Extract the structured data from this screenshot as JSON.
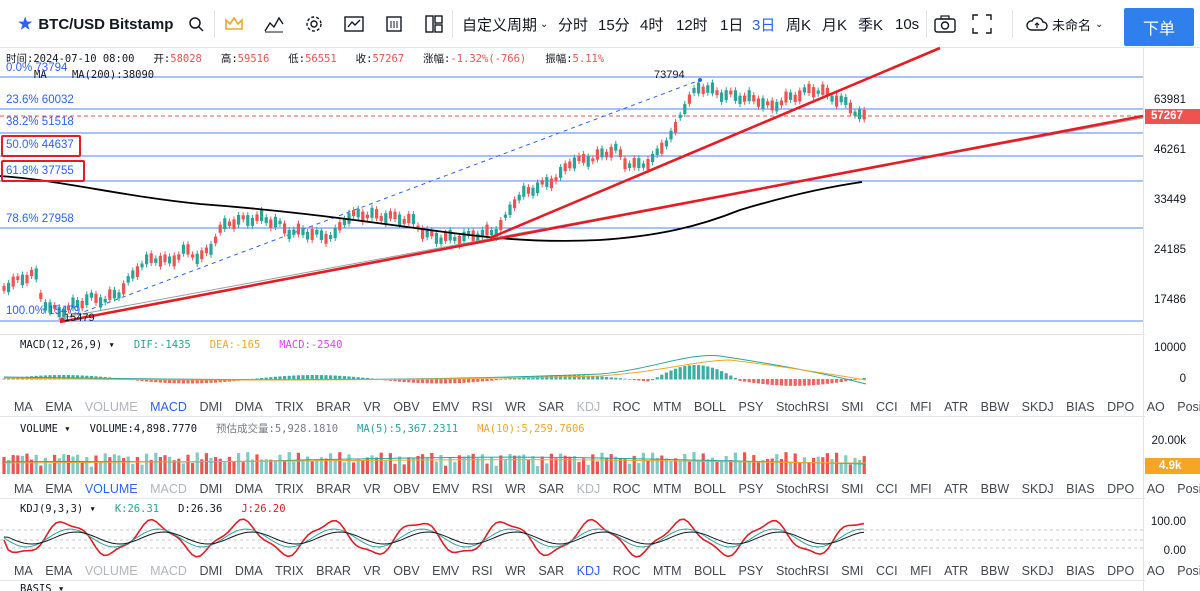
{
  "toolbar": {
    "symbol": "BTC/USD Bitstamp",
    "custom_period": "自定义周期",
    "periods": [
      "分时",
      "15分",
      "4时",
      "12时",
      "1日",
      "3日",
      "周K",
      "月K",
      "季K",
      "10s"
    ],
    "active_period": "3日",
    "unnamed": "未命名",
    "buy": "下单"
  },
  "info": {
    "time": "时间:2024-07-10 08:00",
    "open_label": "开:",
    "open": "58028",
    "high_label": "高:",
    "high": "59516",
    "low_label": "低:",
    "low": "56551",
    "close_label": "收:",
    "close": "57267",
    "chg_label": "涨幅:",
    "chg": "-1.32%(-766)",
    "amp_label": "振幅:",
    "amp": "5.11%"
  },
  "ma": {
    "label": "MA",
    "value": "MA(200):38090"
  },
  "fib": [
    {
      "text": "0.0% 73794"
    },
    {
      "text": "23.6% 60032"
    },
    {
      "text": "38.2% 51518"
    },
    {
      "text": "50.0% 44637"
    },
    {
      "text": "61.8% 37755"
    },
    {
      "text": "78.6% 27958"
    },
    {
      "text": "100.0% 15479"
    }
  ],
  "annotations": {
    "high_marker": "73794",
    "low_marker": "15479"
  },
  "price_axis": [
    "63981",
    "46261",
    "33449",
    "24185",
    "17486"
  ],
  "current_price": "57267",
  "macd": {
    "title": "MACD(12,26,9)",
    "dif": "DIF:-1435",
    "dea": "DEA:-165",
    "macd": "MACD:-2540",
    "axis": [
      "10000",
      "0"
    ]
  },
  "volume": {
    "title": "VOLUME",
    "value": "VOLUME:4,898.7770",
    "estimate": "预估成交量:5,928.1810",
    "ma5": "MA(5):5,367.2311",
    "ma10": "MA(10):5,259.7606",
    "axis": [
      "20.00k",
      "4.9k"
    ]
  },
  "kdj": {
    "title": "KDJ(9,3,3)",
    "k": "K:26.31",
    "d": "D:26.36",
    "j": "J:26.20",
    "axis": [
      "100.00",
      "0.00"
    ]
  },
  "basis_title": "BASIS",
  "indicator_tabs": [
    "MA",
    "EMA",
    "VOLUME",
    "MACD",
    "DMI",
    "DMA",
    "TRIX",
    "BRAR",
    "VR",
    "OBV",
    "EMV",
    "RSI",
    "WR",
    "SAR",
    "KDJ",
    "ROC",
    "MTM",
    "BOLL",
    "PSY",
    "StochRSI",
    "SMI",
    "CCI",
    "MFI",
    "ATR",
    "BBW",
    "SKDJ",
    "BIAS",
    "DPO",
    "AO",
    "Position"
  ],
  "colors": {
    "up": "#26a69a",
    "down": "#ef5350",
    "accent": "#2962ff",
    "trend": "#e51c23",
    "ma200": "#000000"
  }
}
